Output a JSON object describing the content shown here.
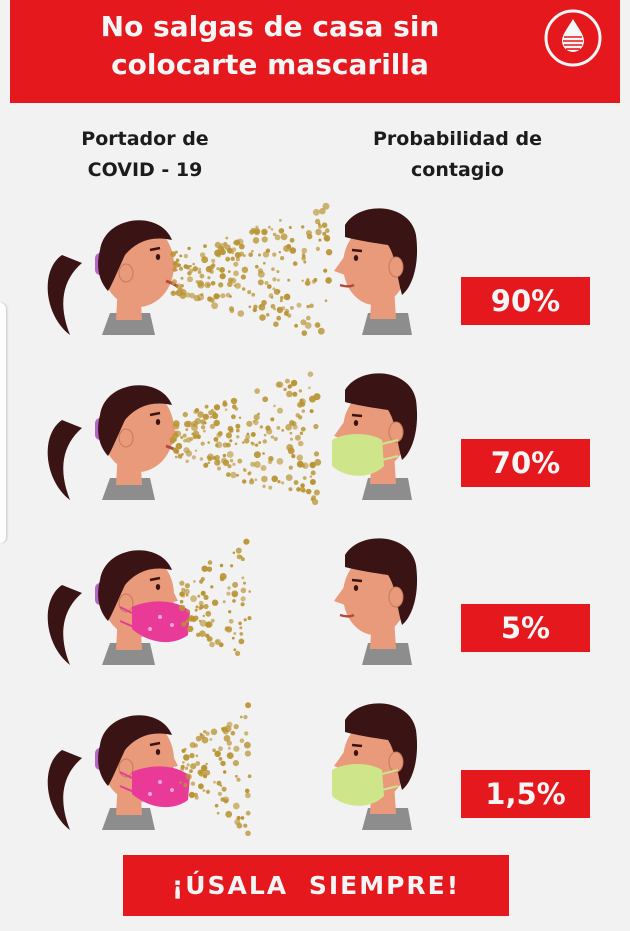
{
  "header": {
    "title": "No salgas de casa sin\ncolocarte mascarilla",
    "logo_icon": "blood-drop-logo"
  },
  "columns": {
    "carrier": "Portador de\nCOVID - 19",
    "probability": "Probabilidad de\ncontagio"
  },
  "rows": [
    {
      "carrier_mask": false,
      "receiver_mask": false,
      "probability": "90%"
    },
    {
      "carrier_mask": false,
      "receiver_mask": true,
      "probability": "70%"
    },
    {
      "carrier_mask": true,
      "receiver_mask": false,
      "probability": "5%"
    },
    {
      "carrier_mask": true,
      "receiver_mask": true,
      "probability": "1,5%"
    }
  ],
  "cta": "¡ÚSALA SIEMPRE!",
  "colors": {
    "red": "#e4181d",
    "background": "#f2f2f2",
    "hair": "#3a1414",
    "skin": "#e89a7a",
    "shirt": "#8d8d8d",
    "girl_mask": "#e93a98",
    "boy_mask": "#cfe58a",
    "droplets": "#b99434"
  }
}
